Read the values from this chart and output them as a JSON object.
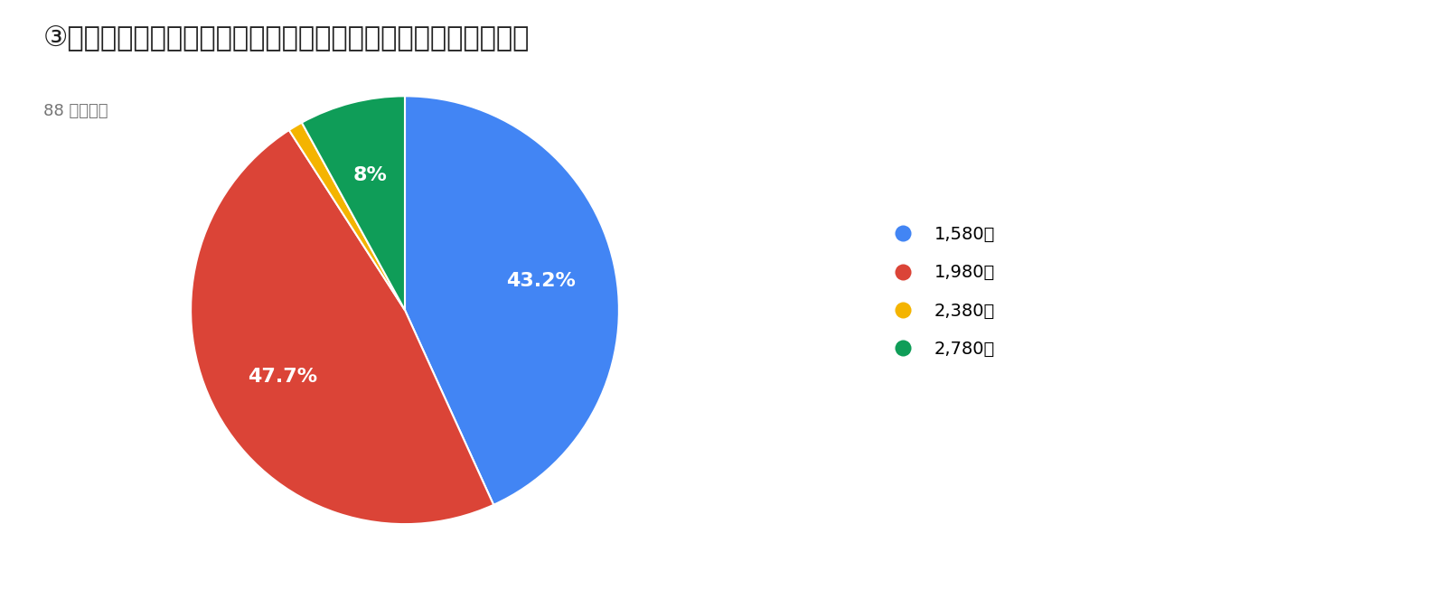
{
  "title": "③月額どのくらい払えますか？　（最大値をお答えください！）",
  "subtitle": "88 件の回答",
  "labels": [
    "1,580円",
    "1,980円",
    "2,380円",
    "2,780円"
  ],
  "values": [
    43.2,
    47.7,
    1.1,
    8.0
  ],
  "colors": [
    "#4285F4",
    "#DB4437",
    "#F4B400",
    "#0F9D58"
  ],
  "autopct_labels": [
    "43.2%",
    "47.7%",
    "",
    "8%"
  ],
  "title_fontsize": 22,
  "subtitle_fontsize": 13,
  "legend_fontsize": 14,
  "autopct_fontsize": 16,
  "background_color": "#ffffff",
  "text_color": "#212121",
  "subtitle_color": "#757575"
}
